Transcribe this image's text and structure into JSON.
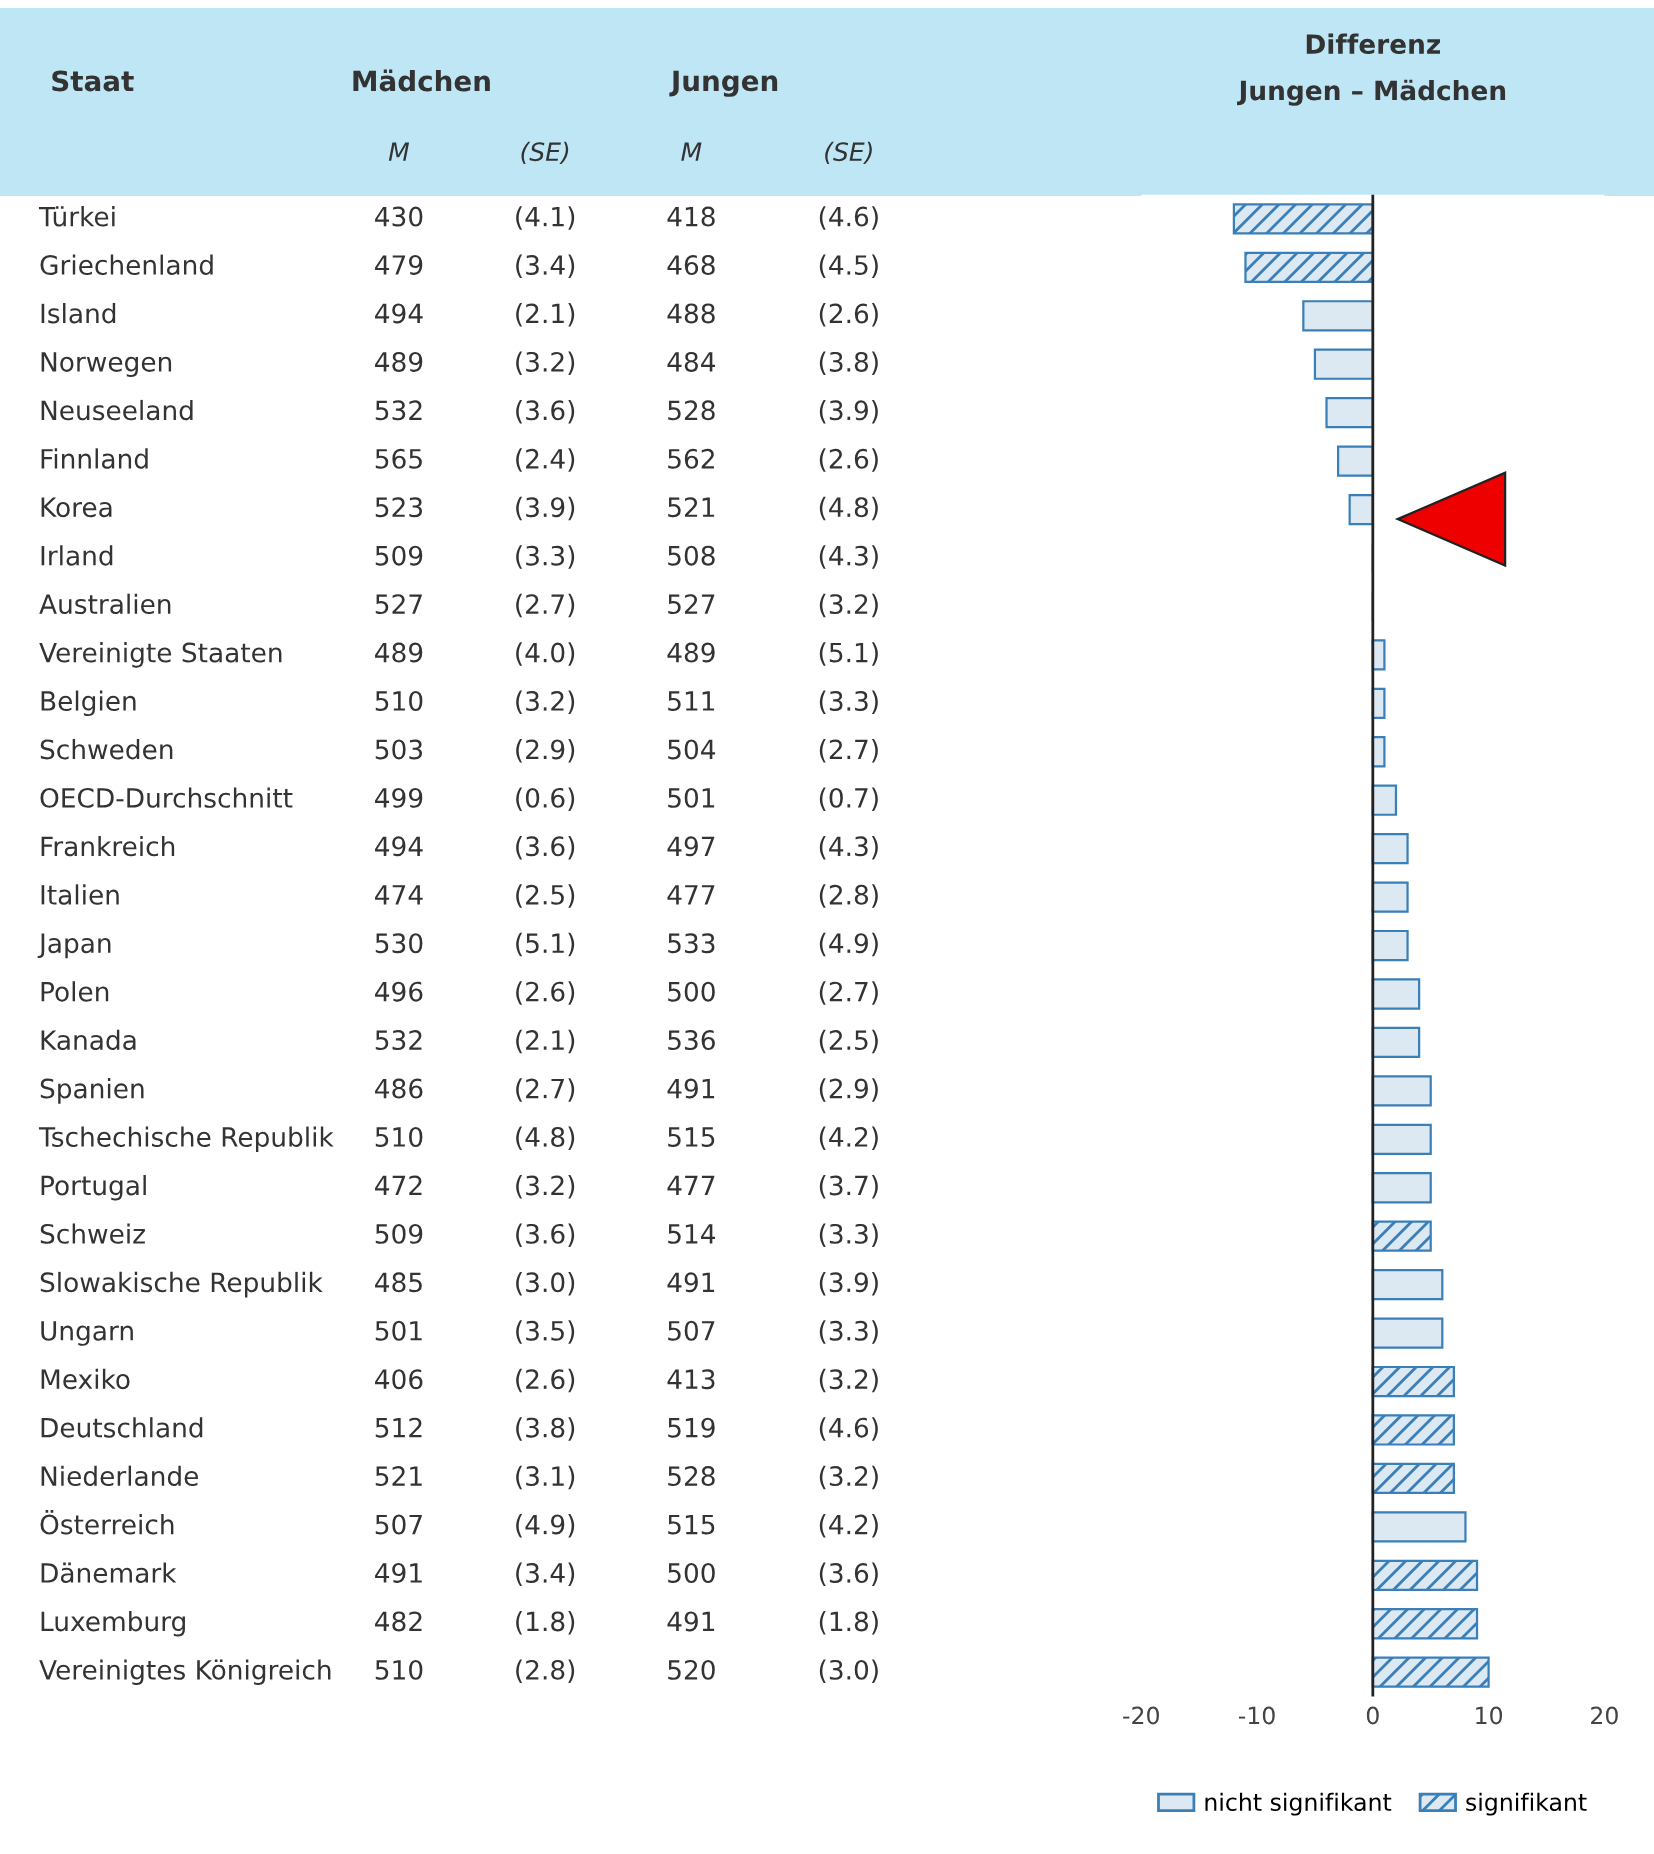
{
  "chart_data": [
    {
      "type": "other",
      "data_labels": true,
      "annotations": [
        "Staat",
        "Mädchen",
        "Jungen",
        "M",
        "(SE)",
        "M",
        "(SE)"
      ],
      "categories": [
        "Türkei",
        "Griechenland",
        "Island",
        "Norwegen",
        "Neuseeland",
        "Finnland",
        "Korea",
        "Irland",
        "Australien",
        "Vereinigte Staaten",
        "Belgien",
        "Schweden",
        "OECD-Durchschnitt",
        "Frankreich",
        "Italien",
        "Japan",
        "Polen",
        "Kanada",
        "Spanien",
        "Tschechische Republik",
        "Portugal",
        "Schweiz",
        "Slowakische Republik",
        "Ungarn",
        "Mexiko",
        "Deutschland",
        "Niederlande",
        "Österreich",
        "Dänemark",
        "Luxemburg",
        "Vereinigtes Königreich"
      ],
      "series": [
        {
          "values": [
            430,
            479,
            494,
            489,
            532,
            565,
            523,
            509,
            527,
            489,
            510,
            503,
            499,
            494,
            474,
            530,
            496,
            532,
            486,
            510,
            472,
            509,
            485,
            501,
            406,
            512,
            521,
            507,
            491,
            482,
            510
          ]
        },
        {
          "values": [
            4.1,
            3.4,
            2.1,
            3.2,
            3.6,
            2.4,
            3.9,
            3.3,
            2.7,
            4.0,
            3.2,
            2.9,
            0.6,
            3.6,
            2.5,
            5.1,
            2.6,
            2.1,
            2.7,
            4.8,
            3.2,
            3.6,
            3.0,
            3.5,
            2.6,
            3.8,
            3.1,
            4.9,
            3.4,
            1.8,
            2.8
          ],
          "value_labels": [
            "(4.1)",
            "(3.4)",
            "(2.1)",
            "(3.2)",
            "(3.6)",
            "(2.4)",
            "(3.9)",
            "(3.3)",
            "(2.7)",
            "(4.0)",
            "(3.2)",
            "(2.9)",
            "(0.6)",
            "(3.6)",
            "(2.5)",
            "(5.1)",
            "(2.6)",
            "(2.1)",
            "(2.7)",
            "(4.8)",
            "(3.2)",
            "(3.6)",
            "(3.0)",
            "(3.5)",
            "(2.6)",
            "(3.8)",
            "(3.1)",
            "(4.9)",
            "(3.4)",
            "(1.8)",
            "(2.8)"
          ]
        },
        {
          "values": [
            418,
            468,
            488,
            484,
            528,
            562,
            521,
            508,
            527,
            489,
            511,
            504,
            501,
            497,
            477,
            533,
            500,
            536,
            491,
            515,
            477,
            514,
            491,
            507,
            413,
            519,
            528,
            515,
            500,
            491,
            520
          ]
        },
        {
          "values": [
            4.6,
            4.5,
            2.6,
            3.8,
            3.9,
            2.6,
            4.8,
            4.3,
            3.2,
            5.1,
            3.3,
            2.7,
            0.7,
            4.3,
            2.8,
            4.9,
            2.7,
            2.5,
            2.9,
            4.2,
            3.7,
            3.3,
            3.9,
            3.3,
            3.2,
            4.6,
            3.2,
            4.2,
            3.6,
            1.8,
            3.0
          ],
          "value_labels": [
            "(4.6)",
            "(4.5)",
            "(2.6)",
            "(3.8)",
            "(3.9)",
            "(2.6)",
            "(4.8)",
            "(4.3)",
            "(3.2)",
            "(5.1)",
            "(3.3)",
            "(2.7)",
            "(0.7)",
            "(4.3)",
            "(2.8)",
            "(4.9)",
            "(2.7)",
            "(2.5)",
            "(2.9)",
            "(4.2)",
            "(3.7)",
            "(3.3)",
            "(3.9)",
            "(3.3)",
            "(3.2)",
            "(4.6)",
            "(3.2)",
            "(4.2)",
            "(3.6)",
            "(1.8)",
            "(3.0)"
          ]
        }
      ]
    },
    {
      "type": "bar",
      "orientation": "horizontal",
      "title": "Differenz",
      "subtitle": "Jungen – Mädchen",
      "categories": [
        null,
        null,
        null,
        null,
        null,
        null,
        null,
        null,
        null,
        null,
        null,
        null,
        null,
        null,
        null,
        null,
        null,
        null,
        null,
        null,
        null,
        null,
        null,
        null,
        null,
        null,
        null,
        null,
        null,
        null,
        null
      ],
      "series": [
        {
          "name": "nicht signifikant",
          "color": "#3a7fb8",
          "values": [
            null,
            null,
            -6,
            -5,
            -4,
            -3,
            -2,
            0,
            0,
            1,
            1,
            1,
            2,
            3,
            3,
            3,
            4,
            4,
            5,
            5,
            5,
            null,
            6,
            6,
            null,
            null,
            null,
            8,
            null,
            null,
            null
          ]
        },
        {
          "name": "signifikant",
          "color": "#3a7fb8",
          "values": [
            -12,
            -11,
            null,
            null,
            null,
            null,
            null,
            null,
            null,
            null,
            null,
            null,
            null,
            null,
            null,
            null,
            null,
            null,
            null,
            null,
            null,
            5,
            null,
            null,
            7,
            7,
            7,
            null,
            9,
            9,
            10
          ]
        }
      ],
      "xlim": [
        -20,
        20
      ],
      "xticks": [
        -20,
        -10,
        0,
        10,
        20
      ],
      "grid": false,
      "legend": "bottom",
      "ref_lines": [
        {
          "axis": "x",
          "value": 0,
          "color": "#222222"
        }
      ]
    }
  ]
}
